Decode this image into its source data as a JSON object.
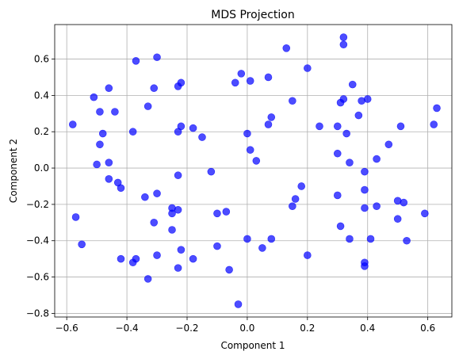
{
  "chart_data": {
    "type": "scatter",
    "title": "MDS Projection",
    "xlabel": "Component 1",
    "ylabel": "Component 2",
    "xlim": [
      -0.64,
      0.68
    ],
    "ylim": [
      -0.82,
      0.79
    ],
    "xticks": [
      -0.6,
      -0.4,
      -0.2,
      0.0,
      0.2,
      0.4,
      0.6
    ],
    "yticks": [
      -0.8,
      -0.6,
      -0.4,
      -0.2,
      0.0,
      0.2,
      0.4,
      0.6
    ],
    "xtick_labels": [
      "−0.6",
      "−0.4",
      "−0.2",
      "0.0",
      "0.2",
      "0.4",
      "0.6"
    ],
    "ytick_labels": [
      "−0.8",
      "−0.6",
      "−0.4",
      "−0.2",
      "0.0",
      "0.2",
      "0.4",
      "0.6"
    ],
    "grid": true,
    "marker_color": "#0000ff",
    "marker_alpha": 0.7,
    "points": [
      [
        -0.58,
        0.24
      ],
      [
        -0.51,
        0.39
      ],
      [
        -0.49,
        0.31
      ],
      [
        -0.49,
        0.13
      ],
      [
        -0.48,
        0.19
      ],
      [
        -0.46,
        0.44
      ],
      [
        -0.44,
        0.31
      ],
      [
        -0.46,
        0.03
      ],
      [
        -0.5,
        0.02
      ],
      [
        -0.46,
        -0.06
      ],
      [
        -0.43,
        -0.08
      ],
      [
        -0.42,
        -0.11
      ],
      [
        -0.57,
        -0.27
      ],
      [
        -0.55,
        -0.42
      ],
      [
        -0.42,
        -0.5
      ],
      [
        -0.37,
        0.59
      ],
      [
        -0.3,
        0.61
      ],
      [
        -0.33,
        0.34
      ],
      [
        -0.31,
        0.44
      ],
      [
        -0.38,
        0.2
      ],
      [
        -0.22,
        0.47
      ],
      [
        -0.23,
        0.45
      ],
      [
        -0.22,
        0.23
      ],
      [
        -0.23,
        0.2
      ],
      [
        -0.18,
        0.22
      ],
      [
        -0.15,
        0.17
      ],
      [
        -0.23,
        -0.04
      ],
      [
        -0.12,
        -0.02
      ],
      [
        -0.3,
        -0.14
      ],
      [
        -0.34,
        -0.16
      ],
      [
        -0.25,
        -0.22
      ],
      [
        -0.25,
        -0.25
      ],
      [
        -0.23,
        -0.23
      ],
      [
        -0.31,
        -0.3
      ],
      [
        -0.25,
        -0.34
      ],
      [
        -0.22,
        -0.45
      ],
      [
        -0.3,
        -0.48
      ],
      [
        -0.37,
        -0.5
      ],
      [
        -0.38,
        -0.52
      ],
      [
        -0.33,
        -0.61
      ],
      [
        -0.23,
        -0.55
      ],
      [
        -0.18,
        -0.5
      ],
      [
        -0.1,
        -0.25
      ],
      [
        -0.07,
        -0.24
      ],
      [
        -0.1,
        -0.43
      ],
      [
        -0.06,
        -0.56
      ],
      [
        -0.03,
        -0.75
      ],
      [
        -0.04,
        0.47
      ],
      [
        -0.02,
        0.52
      ],
      [
        0.01,
        0.48
      ],
      [
        0.07,
        0.5
      ],
      [
        0.13,
        0.66
      ],
      [
        0.2,
        0.55
      ],
      [
        0.15,
        0.37
      ],
      [
        0.08,
        0.28
      ],
      [
        0.07,
        0.24
      ],
      [
        0.0,
        0.19
      ],
      [
        0.01,
        0.1
      ],
      [
        0.03,
        0.04
      ],
      [
        0.0,
        -0.39
      ],
      [
        0.05,
        -0.44
      ],
      [
        0.08,
        -0.39
      ],
      [
        0.18,
        -0.1
      ],
      [
        0.16,
        -0.17
      ],
      [
        0.15,
        -0.21
      ],
      [
        0.2,
        -0.48
      ],
      [
        0.32,
        0.72
      ],
      [
        0.32,
        0.68
      ],
      [
        0.35,
        0.46
      ],
      [
        0.31,
        0.36
      ],
      [
        0.32,
        0.38
      ],
      [
        0.38,
        0.37
      ],
      [
        0.4,
        0.38
      ],
      [
        0.37,
        0.29
      ],
      [
        0.24,
        0.23
      ],
      [
        0.3,
        0.23
      ],
      [
        0.33,
        0.19
      ],
      [
        0.3,
        0.08
      ],
      [
        0.34,
        0.03
      ],
      [
        0.39,
        -0.02
      ],
      [
        0.43,
        0.05
      ],
      [
        0.47,
        0.13
      ],
      [
        0.51,
        0.23
      ],
      [
        0.3,
        -0.15
      ],
      [
        0.39,
        -0.12
      ],
      [
        0.39,
        -0.22
      ],
      [
        0.43,
        -0.21
      ],
      [
        0.31,
        -0.32
      ],
      [
        0.34,
        -0.39
      ],
      [
        0.41,
        -0.39
      ],
      [
        0.39,
        -0.52
      ],
      [
        0.39,
        -0.54
      ],
      [
        0.5,
        -0.18
      ],
      [
        0.52,
        -0.19
      ],
      [
        0.5,
        -0.28
      ],
      [
        0.53,
        -0.4
      ],
      [
        0.59,
        -0.25
      ],
      [
        0.62,
        0.24
      ],
      [
        0.63,
        0.33
      ]
    ]
  }
}
